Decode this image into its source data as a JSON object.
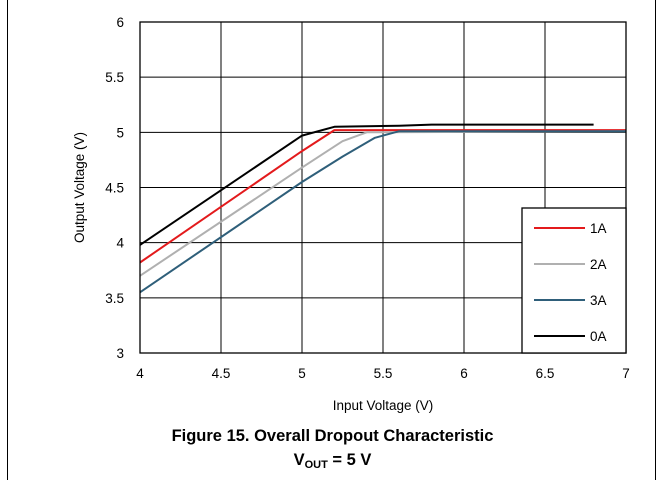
{
  "chart_data": {
    "type": "line",
    "xlabel": "Input Voltage (V)",
    "ylabel": "Output Voltage (V)",
    "xlim": [
      4,
      7
    ],
    "ylim": [
      3,
      6
    ],
    "x_ticks": [
      "4",
      "4.5",
      "5",
      "5.5",
      "6",
      "6.5",
      "7"
    ],
    "y_ticks": [
      "3",
      "3.5",
      "4",
      "4.5",
      "5",
      "5.5",
      "6"
    ],
    "grid": true,
    "legend_position": "bottom-right",
    "series": [
      {
        "name": "1A",
        "color": "#e31a1c",
        "points": [
          [
            4,
            3.82
          ],
          [
            5,
            4.83
          ],
          [
            5.2,
            5.02
          ],
          [
            7,
            5.02
          ]
        ]
      },
      {
        "name": "2A",
        "color": "#b0b0b0",
        "points": [
          [
            4,
            3.7
          ],
          [
            5,
            4.68
          ],
          [
            5.25,
            4.92
          ],
          [
            5.4,
            5.0
          ],
          [
            7,
            5.01
          ]
        ]
      },
      {
        "name": "3A",
        "color": "#2f5f7a",
        "points": [
          [
            4,
            3.55
          ],
          [
            5,
            4.55
          ],
          [
            5.25,
            4.78
          ],
          [
            5.45,
            4.95
          ],
          [
            5.6,
            5.01
          ],
          [
            7,
            5.01
          ]
        ]
      },
      {
        "name": "0A",
        "color": "#000000",
        "points": [
          [
            4,
            3.98
          ],
          [
            5,
            4.97
          ],
          [
            5.2,
            5.05
          ],
          [
            5.6,
            5.06
          ],
          [
            5.8,
            5.07
          ],
          [
            6.8,
            5.07
          ]
        ]
      }
    ]
  },
  "caption": {
    "line1": "Figure 15. Overall Dropout Characteristic",
    "line2_main": "V",
    "line2_sub": "OUT",
    "line2_rest": " = 5 V"
  }
}
